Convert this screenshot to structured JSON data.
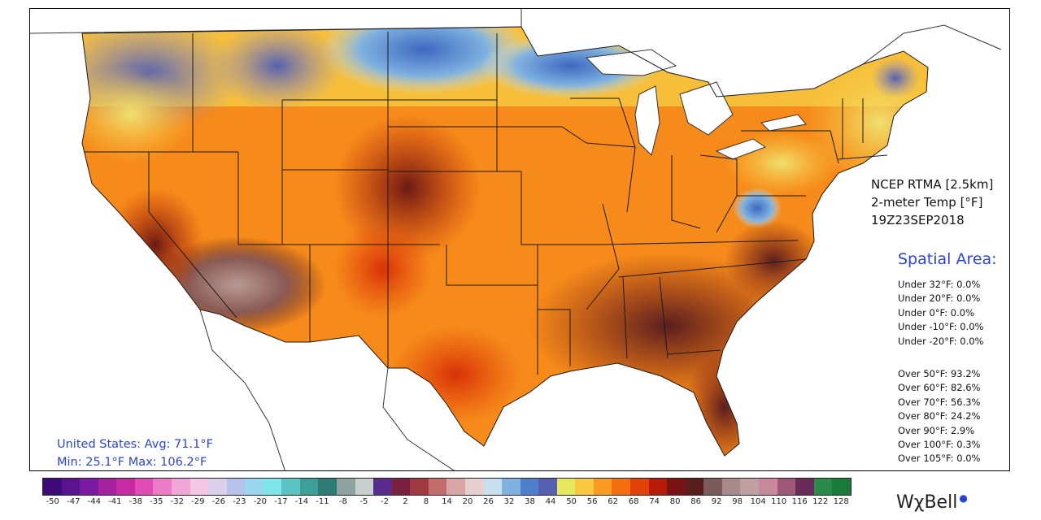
{
  "product": {
    "source": "NCEP RTMA [2.5km]",
    "variable": "2-meter Temp [°F]",
    "valid_time": "19Z23SEP2018"
  },
  "spatial_area": {
    "title": "Spatial Area:",
    "under": [
      "Under 32°F: 0.0%",
      "Under 20°F: 0.0%",
      "Under 0°F: 0.0%",
      "Under -10°F: 0.0%",
      "Under -20°F: 0.0%"
    ],
    "over": [
      "Over 50°F: 93.2%",
      "Over 60°F: 82.6%",
      "Over 70°F: 56.3%",
      "Over 80°F: 24.2%",
      "Over 90°F: 2.9%",
      "Over 100°F: 0.3%",
      "Over 105°F: 0.0%"
    ]
  },
  "summary": {
    "avg_line": "United States: Avg:  71.1°F",
    "minmax_line": "Min:  25.1°F Max: 106.2°F"
  },
  "colorbar": {
    "labels": [
      "-50",
      "-47",
      "-44",
      "-41",
      "-38",
      "-35",
      "-32",
      "-29",
      "-26",
      "-23",
      "-20",
      "-17",
      "-14",
      "-11",
      "-8",
      "-5",
      "-2",
      "2",
      "8",
      "14",
      "20",
      "26",
      "32",
      "38",
      "44",
      "50",
      "56",
      "62",
      "68",
      "74",
      "80",
      "86",
      "92",
      "98",
      "104",
      "110",
      "116",
      "122",
      "128"
    ],
    "colors": [
      "#3d0a78",
      "#5a138f",
      "#7a1aa0",
      "#a3209e",
      "#c82aa3",
      "#e04bb4",
      "#ec7cc8",
      "#f2a6d8",
      "#f5c6e6",
      "#dcd0ec",
      "#b6c2ea",
      "#9ad6ee",
      "#7fe6ec",
      "#5cc3c4",
      "#3e9e9a",
      "#2c7b76",
      "#8fa3a2",
      "#c8cfcf",
      "#5a2a8c",
      "#7a2140",
      "#a03a40",
      "#c26c6c",
      "#d9a5a5",
      "#e8d0d0",
      "#c8dfee",
      "#7fb2e0",
      "#4d7fcc",
      "#5560b0",
      "#e8e860",
      "#f7c840",
      "#f89b20",
      "#f56e10",
      "#e24208",
      "#b81a0a",
      "#7a1414",
      "#5a1e1e",
      "#7a5a5a",
      "#a88a8a",
      "#c0a0a0",
      "#c88a9a",
      "#a05878",
      "#6a2a5a",
      "#2a8a4a",
      "#1a7a3a"
    ]
  },
  "brand": {
    "name": "WχBell"
  },
  "colors": {
    "accent_blue": "#2a44d6"
  },
  "map": {
    "region": "Continental United States",
    "style": "temperature shading with state boundaries"
  }
}
